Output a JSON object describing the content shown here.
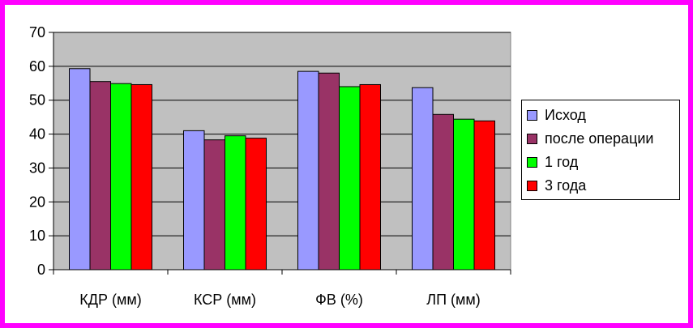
{
  "chart_data": {
    "type": "bar",
    "categories": [
      "КДР (мм)",
      "КСР (мм)",
      "ФВ (%)",
      "ЛП (мм)"
    ],
    "series": [
      {
        "name": "Исход",
        "color": "#9999ff",
        "values": [
          59.3,
          41.0,
          58.5,
          53.7
        ]
      },
      {
        "name": "после операции",
        "color": "#993366",
        "values": [
          55.5,
          38.3,
          58.0,
          45.8
        ]
      },
      {
        "name": "1 год",
        "color": "#00ff00",
        "values": [
          54.9,
          39.5,
          54.0,
          44.4
        ]
      },
      {
        "name": "3 года",
        "color": "#ff0000",
        "values": [
          54.6,
          38.8,
          54.6,
          43.9
        ]
      }
    ],
    "ylim": [
      0,
      70
    ],
    "yticks": [
      0,
      10,
      20,
      30,
      40,
      50,
      60,
      70
    ],
    "grid": true,
    "legend": "right",
    "plot_background": "#c0c0c0"
  }
}
